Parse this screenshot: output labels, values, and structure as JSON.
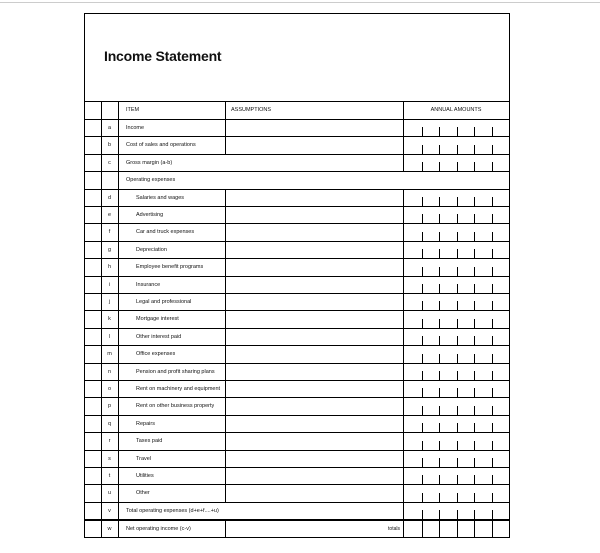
{
  "title": "Income Statement",
  "header": {
    "item": "ITEM",
    "assumptions": "ASSUMPTIONS",
    "amounts": "ANNUAL AMOUNTS"
  },
  "rows": [
    {
      "letter": "a",
      "label": "Income",
      "kind": "normal",
      "indent": false
    },
    {
      "letter": "b",
      "label": "Cost of sales and operations",
      "kind": "normal",
      "indent": false
    },
    {
      "letter": "c",
      "label": "Gross margin (a-b)",
      "kind": "span",
      "indent": false
    },
    {
      "letter": "",
      "label": "Operating expenses",
      "kind": "section",
      "indent": false
    },
    {
      "letter": "d",
      "label": "Salaries and wages",
      "kind": "normal",
      "indent": true
    },
    {
      "letter": "e",
      "label": "Advertising",
      "kind": "normal",
      "indent": true
    },
    {
      "letter": "f",
      "label": "Car and truck expenses",
      "kind": "normal",
      "indent": true
    },
    {
      "letter": "g",
      "label": "Depreciation",
      "kind": "normal",
      "indent": true
    },
    {
      "letter": "h",
      "label": "Employee benefit programs",
      "kind": "normal",
      "indent": true
    },
    {
      "letter": "i",
      "label": "Insurance",
      "kind": "normal",
      "indent": true
    },
    {
      "letter": "j",
      "label": "Legal and professional",
      "kind": "normal",
      "indent": true
    },
    {
      "letter": "k",
      "label": "Mortgage interest",
      "kind": "normal",
      "indent": true
    },
    {
      "letter": "l",
      "label": "Other interest paid",
      "kind": "normal",
      "indent": true
    },
    {
      "letter": "m",
      "label": "Office expenses",
      "kind": "normal",
      "indent": true
    },
    {
      "letter": "n",
      "label": "Pension and profit sharing plans",
      "kind": "normal",
      "indent": true
    },
    {
      "letter": "o",
      "label": "Rent on machinery and equipment",
      "kind": "normal",
      "indent": true
    },
    {
      "letter": "p",
      "label": "Rent on other business property",
      "kind": "normal",
      "indent": true
    },
    {
      "letter": "q",
      "label": "Repairs",
      "kind": "normal",
      "indent": true
    },
    {
      "letter": "r",
      "label": "Taxes paid",
      "kind": "normal",
      "indent": true
    },
    {
      "letter": "s",
      "label": "Travel",
      "kind": "normal",
      "indent": true
    },
    {
      "letter": "t",
      "label": "Utilities",
      "kind": "normal",
      "indent": true
    },
    {
      "letter": "u",
      "label": "Other",
      "kind": "normal",
      "indent": true
    },
    {
      "letter": "v",
      "label": "Total operating expenses (d+e+f....+u)",
      "kind": "span",
      "indent": false
    },
    {
      "letter": "w",
      "label": "Net operating income (c-v)",
      "kind": "total",
      "indent": false,
      "note": "totals"
    }
  ]
}
